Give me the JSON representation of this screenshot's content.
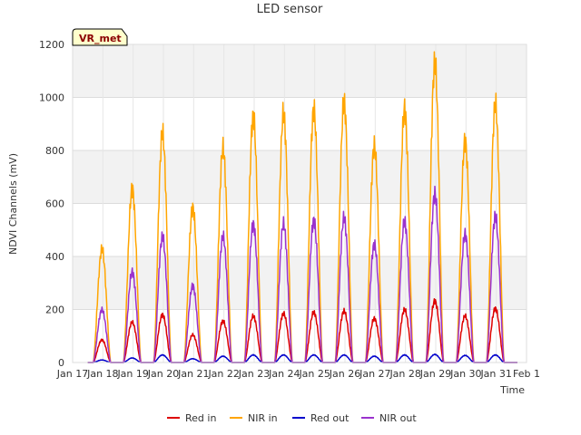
{
  "chart_data": {
    "type": "line",
    "title": "LED sensor",
    "xlabel": "Time",
    "ylabel": "NDVI Channels (mV)",
    "ylim": [
      0,
      1200
    ],
    "yticks": [
      0,
      200,
      400,
      600,
      800,
      1000,
      1200
    ],
    "xlim": [
      17,
      32
    ],
    "xticks": [
      {
        "value": 17,
        "label": "Jan 17"
      },
      {
        "value": 18,
        "label": "Jan 18"
      },
      {
        "value": 19,
        "label": "Jan 19"
      },
      {
        "value": 20,
        "label": "Jan 20"
      },
      {
        "value": 21,
        "label": "Jan 21"
      },
      {
        "value": 22,
        "label": "Jan 22"
      },
      {
        "value": 23,
        "label": "Jan 23"
      },
      {
        "value": 24,
        "label": "Jan 24"
      },
      {
        "value": 25,
        "label": "Jan 25"
      },
      {
        "value": 26,
        "label": "Jan 26"
      },
      {
        "value": 27,
        "label": "Jan 27"
      },
      {
        "value": 28,
        "label": "Jan 28"
      },
      {
        "value": 29,
        "label": "Jan 29"
      },
      {
        "value": 30,
        "label": "Jan 30"
      },
      {
        "value": 31,
        "label": "Jan 31"
      },
      {
        "value": 32,
        "label": "Feb 1"
      }
    ],
    "annotation": "VR_met",
    "legend_position": "bottom",
    "days": [
      18,
      19,
      20,
      21,
      22,
      23,
      24,
      25,
      26,
      27,
      28,
      29,
      30,
      31
    ],
    "series": [
      {
        "name": "Red in",
        "color": "#dd0000",
        "peaks": [
          90,
          160,
          190,
          110,
          165,
          185,
          195,
          200,
          205,
          175,
          210,
          245,
          185,
          215
        ]
      },
      {
        "name": "NIR in",
        "color": "#ffa500",
        "peaks": [
          450,
          690,
          910,
          615,
          850,
          980,
          990,
          1005,
          1035,
          860,
          1005,
          1190,
          880,
          1025
        ]
      },
      {
        "name": "Red out",
        "color": "#0000cc",
        "peaks": [
          10,
          18,
          30,
          15,
          25,
          30,
          30,
          30,
          30,
          25,
          30,
          32,
          28,
          30
        ]
      },
      {
        "name": "NIR out",
        "color": "#9a32cd",
        "peaks": [
          210,
          360,
          500,
          305,
          500,
          550,
          550,
          565,
          575,
          470,
          560,
          670,
          510,
          580
        ]
      }
    ]
  }
}
